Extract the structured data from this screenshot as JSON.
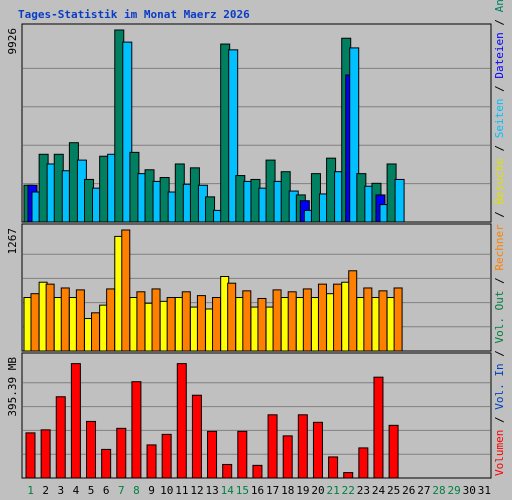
{
  "chart_data": {
    "type": "bar",
    "title": "Tages-Statistik im Monat Maerz 2026",
    "days": [
      "1",
      "2",
      "3",
      "4",
      "5",
      "6",
      "7",
      "8",
      "9",
      "10",
      "11",
      "12",
      "13",
      "14",
      "15",
      "16",
      "17",
      "18",
      "19",
      "20",
      "21",
      "22",
      "23",
      "24",
      "25",
      "26",
      "27",
      "28",
      "29",
      "30",
      "31"
    ],
    "weekend_days": [
      "1",
      "7",
      "8",
      "14",
      "15",
      "21",
      "22",
      "28",
      "29"
    ],
    "colors": {
      "text_default": "#000000",
      "text_weekend": "#008040",
      "title": "#0b3cc4",
      "background": "#c0c0c0",
      "panel_border": "#000000",
      "gridline": "#808080"
    },
    "panels": [
      {
        "id": "top",
        "max_label": "9926",
        "ymax": 9926,
        "series": [
          {
            "name": "Anfragen",
            "color": "#008060",
            "values": [
              1900,
              3500,
              3500,
              4100,
              2200,
              3400,
              9926,
              3600,
              2700,
              2300,
              3000,
              2800,
              1300,
              9200,
              2400,
              2200,
              3200,
              2600,
              1400,
              2500,
              3300,
              9500,
              2500,
              2000,
              3000,
              null,
              null,
              null,
              null,
              null,
              null
            ]
          },
          {
            "name": "Dateien",
            "color": "#0000ff",
            "values": [
              1900,
              null,
              null,
              null,
              null,
              null,
              null,
              null,
              null,
              null,
              null,
              null,
              null,
              null,
              null,
              null,
              null,
              null,
              1100,
              null,
              null,
              7600,
              null,
              1400,
              null,
              null,
              null,
              null,
              null,
              null,
              null
            ]
          },
          {
            "name": "Seiten",
            "color": "#00c0ff",
            "values": [
              1550,
              3000,
              2650,
              3200,
              1750,
              3500,
              9300,
              2500,
              2100,
              1550,
              1950,
              1900,
              600,
              8900,
              2100,
              1750,
              2100,
              1600,
              600,
              1450,
              2600,
              9000,
              1850,
              900,
              2200,
              null,
              null,
              null,
              null,
              null,
              null
            ]
          }
        ]
      },
      {
        "id": "middle",
        "max_label": "1267",
        "ymax": 1267,
        "series": [
          {
            "name": "Besuche",
            "color": "#ffff00",
            "values": [
              560,
              720,
              560,
              560,
              340,
              480,
              1200,
              560,
              500,
              520,
              560,
              460,
              440,
              780,
              560,
              460,
              460,
              560,
              560,
              560,
              600,
              720,
              560,
              560,
              560,
              null,
              null,
              null,
              null,
              null,
              null
            ]
          },
          {
            "name": "Rechner",
            "color": "#ff8000",
            "values": [
              600,
              700,
              660,
              640,
              400,
              650,
              1267,
              620,
              650,
              560,
              620,
              580,
              560,
              710,
              630,
              550,
              640,
              620,
              650,
              700,
              700,
              840,
              660,
              630,
              660,
              null,
              null,
              null,
              null,
              null,
              null
            ]
          }
        ]
      },
      {
        "id": "bottom",
        "max_label": "395.39 MB",
        "ymax": 395.39,
        "series": [
          {
            "name": "Volumen",
            "color": "#ff0000",
            "values": [
              150,
              160,
              270,
              380,
              188,
              95,
              165,
              320,
              110,
              145,
              380,
              275,
              155,
              45,
              155,
              42,
              210,
              140,
              210,
              185,
              70,
              18,
              100,
              335,
              175,
              null,
              null,
              null,
              null,
              null,
              null
            ]
          }
        ]
      }
    ],
    "legend": [
      {
        "label": "Volumen",
        "color": "#ff0000"
      },
      {
        "label": "Vol. In",
        "color": "#0040c0"
      },
      {
        "label": "Vol. Out",
        "color": "#008040"
      },
      {
        "label": "Rechner",
        "color": "#ff8000"
      },
      {
        "label": "Besuche",
        "color": "#e0e000"
      },
      {
        "label": "Seiten",
        "color": "#00c0ff"
      },
      {
        "label": "Dateien",
        "color": "#0000ff"
      },
      {
        "label": "Anfragen",
        "color": "#008060"
      }
    ],
    "legend_separator": "/"
  }
}
